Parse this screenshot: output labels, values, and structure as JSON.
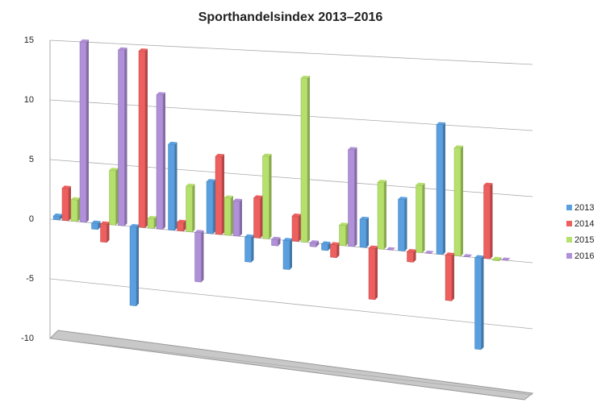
{
  "chart_data": {
    "type": "bar3d",
    "title": "Sporthandelsindex 2013–2016",
    "categories": [
      null,
      null,
      null,
      null,
      null,
      null,
      null,
      null,
      null,
      null,
      null,
      null
    ],
    "series": [
      {
        "name": "2013",
        "color": "#5aa0e0",
        "values": [
          0.3,
          -0.5,
          -6.5,
          7,
          4.2,
          -2,
          -2.3,
          -0.5,
          2.2,
          4,
          10,
          -7
        ]
      },
      {
        "name": "2014",
        "color": "#ee5f5f",
        "values": [
          2.7,
          -1.5,
          14.5,
          0.7,
          6.3,
          3.2,
          2,
          -1,
          -4,
          -0.8,
          -3.5,
          5.6
        ]
      },
      {
        "name": "2015",
        "color": "#b6e06c",
        "values": [
          1.8,
          4.5,
          0.8,
          3.7,
          3,
          6.6,
          13,
          1.6,
          5.2,
          5.2,
          8.3,
          -0.1
        ]
      },
      {
        "name": "2016",
        "color": "#b090d8",
        "values": [
          15,
          14.5,
          11,
          -4,
          2.8,
          -0.5,
          -0.3,
          7.6,
          0,
          0,
          0,
          0
        ]
      }
    ],
    "ylim": [
      -10,
      15
    ],
    "yticks": [
      -10,
      -5,
      0,
      5,
      10,
      15
    ],
    "grid": true,
    "legend": "right"
  }
}
